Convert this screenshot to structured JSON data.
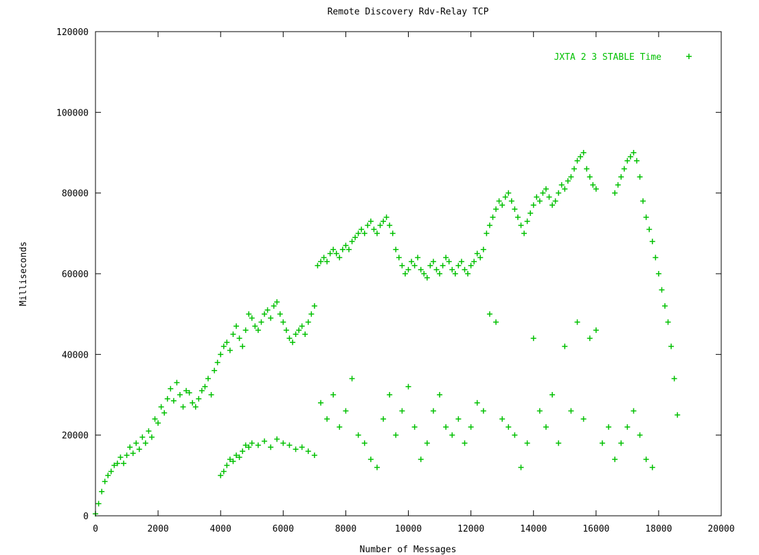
{
  "chart_data": {
    "type": "scatter",
    "title": "Remote Discovery Rdv-Relay TCP",
    "xlabel": "Number of Messages",
    "ylabel": "Milliseconds",
    "xlim": [
      0,
      20000
    ],
    "ylim": [
      0,
      120000
    ],
    "x_ticks": [
      "0",
      "2000",
      "4000",
      "6000",
      "8000",
      "10000",
      "12000",
      "14000",
      "16000",
      "18000",
      "20000"
    ],
    "y_ticks": [
      "0",
      "20000",
      "40000",
      "60000",
      "80000",
      "100000",
      "120000"
    ],
    "grid": false,
    "legend": {
      "position": "top-right",
      "marker": "+"
    },
    "series": [
      {
        "name": "JXTA 2 3 STABLE Time",
        "color": "#00c000",
        "marker": "+",
        "points": [
          [
            0,
            500
          ],
          [
            100,
            3000
          ],
          [
            200,
            6000
          ],
          [
            300,
            8500
          ],
          [
            400,
            10000
          ],
          [
            500,
            11000
          ],
          [
            600,
            12500
          ],
          [
            700,
            13000
          ],
          [
            800,
            14500
          ],
          [
            900,
            13000
          ],
          [
            1000,
            15000
          ],
          [
            1100,
            17000
          ],
          [
            1200,
            15500
          ],
          [
            1300,
            18000
          ],
          [
            1400,
            16500
          ],
          [
            1500,
            19500
          ],
          [
            1600,
            18000
          ],
          [
            1700,
            21000
          ],
          [
            1800,
            19500
          ],
          [
            1900,
            24000
          ],
          [
            2000,
            23000
          ],
          [
            2100,
            27000
          ],
          [
            2200,
            25500
          ],
          [
            2300,
            29000
          ],
          [
            2400,
            31500
          ],
          [
            2500,
            28500
          ],
          [
            2600,
            33000
          ],
          [
            2700,
            30000
          ],
          [
            2800,
            27000
          ],
          [
            2900,
            31000
          ],
          [
            3000,
            30500
          ],
          [
            3100,
            28000
          ],
          [
            3200,
            27000
          ],
          [
            3300,
            29000
          ],
          [
            3400,
            31000
          ],
          [
            3500,
            32000
          ],
          [
            3600,
            34000
          ],
          [
            3700,
            30000
          ],
          [
            3800,
            36000
          ],
          [
            3900,
            38000
          ],
          [
            4000,
            40000
          ],
          [
            4100,
            42000
          ],
          [
            4200,
            43000
          ],
          [
            4300,
            41000
          ],
          [
            4400,
            45000
          ],
          [
            4500,
            47000
          ],
          [
            4600,
            44000
          ],
          [
            4700,
            42000
          ],
          [
            4800,
            46000
          ],
          [
            4900,
            50000
          ],
          [
            5000,
            49000
          ],
          [
            5100,
            47000
          ],
          [
            5200,
            46000
          ],
          [
            5300,
            48000
          ],
          [
            5400,
            50000
          ],
          [
            5500,
            51000
          ],
          [
            5600,
            49000
          ],
          [
            5700,
            52000
          ],
          [
            5800,
            53000
          ],
          [
            5900,
            50000
          ],
          [
            6000,
            48000
          ],
          [
            6100,
            46000
          ],
          [
            6200,
            44000
          ],
          [
            6300,
            43000
          ],
          [
            6400,
            45000
          ],
          [
            6500,
            46000
          ],
          [
            6600,
            47000
          ],
          [
            6700,
            45000
          ],
          [
            6800,
            48000
          ],
          [
            6900,
            50000
          ],
          [
            7000,
            52000
          ],
          [
            7100,
            62000
          ],
          [
            7200,
            63000
          ],
          [
            7300,
            64000
          ],
          [
            7400,
            63000
          ],
          [
            7500,
            65000
          ],
          [
            7600,
            66000
          ],
          [
            7700,
            65000
          ],
          [
            7800,
            64000
          ],
          [
            7900,
            66000
          ],
          [
            8000,
            67000
          ],
          [
            8100,
            66000
          ],
          [
            8200,
            68000
          ],
          [
            8300,
            69000
          ],
          [
            8400,
            70000
          ],
          [
            8500,
            71000
          ],
          [
            8600,
            70000
          ],
          [
            8700,
            72000
          ],
          [
            8800,
            73000
          ],
          [
            8900,
            71000
          ],
          [
            9000,
            70000
          ],
          [
            9100,
            72000
          ],
          [
            9200,
            73000
          ],
          [
            9300,
            74000
          ],
          [
            9400,
            72000
          ],
          [
            9500,
            70000
          ],
          [
            9600,
            66000
          ],
          [
            9700,
            64000
          ],
          [
            9800,
            62000
          ],
          [
            9900,
            60000
          ],
          [
            10000,
            61000
          ],
          [
            10100,
            63000
          ],
          [
            10200,
            62000
          ],
          [
            10300,
            64000
          ],
          [
            10400,
            61000
          ],
          [
            10500,
            60000
          ],
          [
            10600,
            59000
          ],
          [
            10700,
            62000
          ],
          [
            10800,
            63000
          ],
          [
            10900,
            61000
          ],
          [
            11000,
            60000
          ],
          [
            11100,
            62000
          ],
          [
            11200,
            64000
          ],
          [
            11300,
            63000
          ],
          [
            11400,
            61000
          ],
          [
            11500,
            60000
          ],
          [
            11600,
            62000
          ],
          [
            11700,
            63000
          ],
          [
            11800,
            61000
          ],
          [
            11900,
            60000
          ],
          [
            12000,
            62000
          ],
          [
            12100,
            63000
          ],
          [
            12200,
            65000
          ],
          [
            12300,
            64000
          ],
          [
            12400,
            66000
          ],
          [
            12500,
            70000
          ],
          [
            12600,
            72000
          ],
          [
            12700,
            74000
          ],
          [
            12800,
            76000
          ],
          [
            12900,
            78000
          ],
          [
            13000,
            77000
          ],
          [
            13100,
            79000
          ],
          [
            13200,
            80000
          ],
          [
            13300,
            78000
          ],
          [
            13400,
            76000
          ],
          [
            13500,
            74000
          ],
          [
            13600,
            72000
          ],
          [
            13700,
            70000
          ],
          [
            13800,
            73000
          ],
          [
            13900,
            75000
          ],
          [
            14000,
            77000
          ],
          [
            14100,
            79000
          ],
          [
            14200,
            78000
          ],
          [
            14300,
            80000
          ],
          [
            14400,
            81000
          ],
          [
            14500,
            79000
          ],
          [
            14600,
            77000
          ],
          [
            14700,
            78000
          ],
          [
            14800,
            80000
          ],
          [
            14900,
            82000
          ],
          [
            15000,
            81000
          ],
          [
            15100,
            83000
          ],
          [
            15200,
            84000
          ],
          [
            15300,
            86000
          ],
          [
            15400,
            88000
          ],
          [
            15500,
            89000
          ],
          [
            15600,
            90000
          ],
          [
            15700,
            86000
          ],
          [
            15800,
            84000
          ],
          [
            15900,
            82000
          ],
          [
            16000,
            81000
          ],
          [
            16600,
            80000
          ],
          [
            16700,
            82000
          ],
          [
            16800,
            84000
          ],
          [
            16900,
            86000
          ],
          [
            17000,
            88000
          ],
          [
            17100,
            89000
          ],
          [
            17200,
            90000
          ],
          [
            17300,
            88000
          ],
          [
            17400,
            84000
          ],
          [
            17500,
            78000
          ],
          [
            17600,
            74000
          ],
          [
            17700,
            71000
          ],
          [
            17800,
            68000
          ],
          [
            17900,
            64000
          ],
          [
            18000,
            60000
          ],
          [
            18100,
            56000
          ],
          [
            18200,
            52000
          ],
          [
            18300,
            48000
          ],
          [
            18400,
            42000
          ],
          [
            18500,
            34000
          ],
          [
            18600,
            25000
          ],
          [
            4000,
            10000
          ],
          [
            4100,
            11000
          ],
          [
            4200,
            12500
          ],
          [
            4300,
            14000
          ],
          [
            4400,
            13500
          ],
          [
            4500,
            15000
          ],
          [
            4600,
            14500
          ],
          [
            4700,
            16000
          ],
          [
            4800,
            17500
          ],
          [
            4900,
            17000
          ],
          [
            5000,
            18000
          ],
          [
            5200,
            17500
          ],
          [
            5400,
            18500
          ],
          [
            5600,
            17000
          ],
          [
            5800,
            19000
          ],
          [
            6000,
            18000
          ],
          [
            6200,
            17500
          ],
          [
            6400,
            16500
          ],
          [
            6600,
            17000
          ],
          [
            6800,
            16000
          ],
          [
            7000,
            15000
          ],
          [
            7200,
            28000
          ],
          [
            7400,
            24000
          ],
          [
            7600,
            30000
          ],
          [
            7800,
            22000
          ],
          [
            8000,
            26000
          ],
          [
            8200,
            34000
          ],
          [
            8400,
            20000
          ],
          [
            8600,
            18000
          ],
          [
            8800,
            14000
          ],
          [
            9000,
            12000
          ],
          [
            9200,
            24000
          ],
          [
            9400,
            30000
          ],
          [
            9600,
            20000
          ],
          [
            9800,
            26000
          ],
          [
            10000,
            32000
          ],
          [
            10200,
            22000
          ],
          [
            10400,
            14000
          ],
          [
            10600,
            18000
          ],
          [
            10800,
            26000
          ],
          [
            11000,
            30000
          ],
          [
            11200,
            22000
          ],
          [
            11400,
            20000
          ],
          [
            11600,
            24000
          ],
          [
            11800,
            18000
          ],
          [
            12000,
            22000
          ],
          [
            12200,
            28000
          ],
          [
            12400,
            26000
          ],
          [
            12600,
            50000
          ],
          [
            12800,
            48000
          ],
          [
            13000,
            24000
          ],
          [
            13200,
            22000
          ],
          [
            13400,
            20000
          ],
          [
            13600,
            12000
          ],
          [
            13800,
            18000
          ],
          [
            14000,
            44000
          ],
          [
            14200,
            26000
          ],
          [
            14400,
            22000
          ],
          [
            14600,
            30000
          ],
          [
            14800,
            18000
          ],
          [
            15000,
            42000
          ],
          [
            15200,
            26000
          ],
          [
            15400,
            48000
          ],
          [
            15600,
            24000
          ],
          [
            15800,
            44000
          ],
          [
            16000,
            46000
          ],
          [
            16200,
            18000
          ],
          [
            16400,
            22000
          ],
          [
            16600,
            14000
          ],
          [
            16800,
            18000
          ],
          [
            17000,
            22000
          ],
          [
            17200,
            26000
          ],
          [
            17400,
            20000
          ],
          [
            17600,
            14000
          ],
          [
            17800,
            12000
          ]
        ]
      }
    ]
  }
}
